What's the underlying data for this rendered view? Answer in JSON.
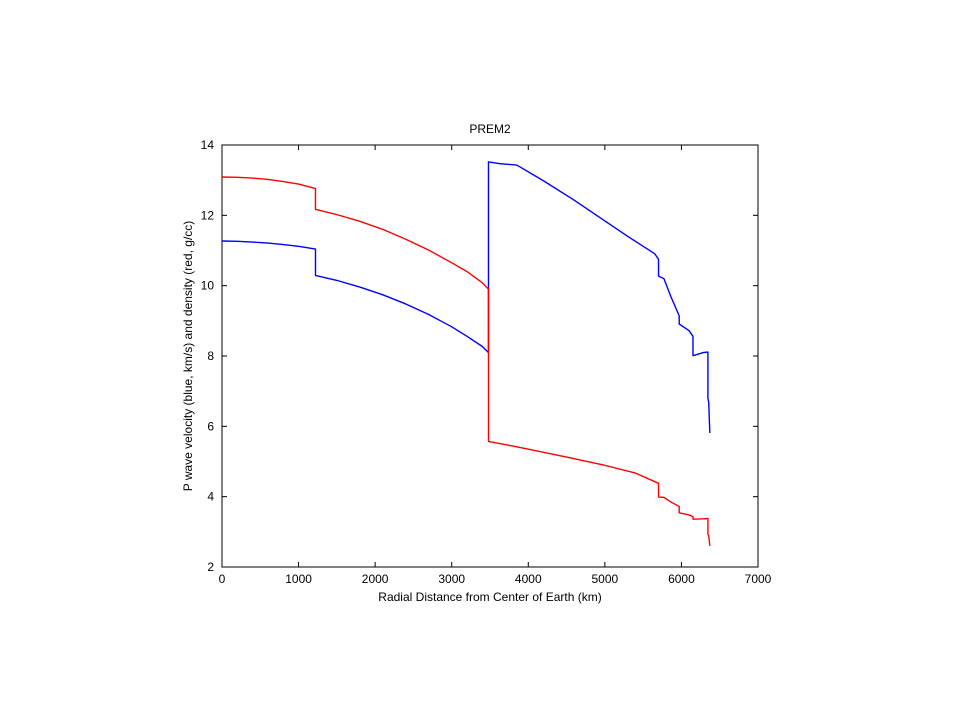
{
  "chart_data": {
    "type": "line",
    "title": "PREM2",
    "xlabel": "Radial Distance from Center of Earth (km)",
    "ylabel": "P wave velocity (blue, km/s) and density (red, g/cc)",
    "xlim": [
      0,
      7000
    ],
    "ylim": [
      2,
      14
    ],
    "xticks": [
      0,
      1000,
      2000,
      3000,
      4000,
      5000,
      6000,
      7000
    ],
    "yticks": [
      2,
      4,
      6,
      8,
      10,
      12,
      14
    ],
    "grid": false,
    "series": [
      {
        "color": "#0000ff",
        "x": [
          0,
          200,
          400,
          600,
          800,
          1000,
          1221,
          1221,
          1500,
          1800,
          2100,
          2400,
          2700,
          3000,
          3200,
          3400,
          3480,
          3480,
          3630,
          3850,
          4200,
          4600,
          5000,
          5300,
          5500,
          5650,
          5701,
          5701,
          5771,
          5860,
          5971,
          5971,
          6100,
          6151,
          6151,
          6291,
          6346,
          6346,
          6356,
          6371
        ],
        "y": [
          11.27,
          11.26,
          11.24,
          11.21,
          11.17,
          11.12,
          11.04,
          10.29,
          10.15,
          9.96,
          9.74,
          9.48,
          9.18,
          8.83,
          8.56,
          8.27,
          8.1,
          13.52,
          13.47,
          13.43,
          12.98,
          12.43,
          11.84,
          11.4,
          11.12,
          10.91,
          10.75,
          10.27,
          10.2,
          9.7,
          9.14,
          8.91,
          8.72,
          8.56,
          8.01,
          8.1,
          8.11,
          6.8,
          6.68,
          5.81
        ]
      },
      {
        "color": "#ff0000",
        "x": [
          0,
          200,
          400,
          600,
          800,
          1000,
          1221,
          1221,
          1500,
          1800,
          2100,
          2400,
          2700,
          3000,
          3200,
          3400,
          3480,
          3480,
          3800,
          4200,
          4600,
          5000,
          5400,
          5701,
          5701,
          5771,
          5860,
          5971,
          5971,
          6100,
          6151,
          6151,
          6291,
          6346,
          6346,
          6356,
          6371
        ],
        "y": [
          13.09,
          13.08,
          13.06,
          13.02,
          12.96,
          12.89,
          12.76,
          12.17,
          12.02,
          11.83,
          11.6,
          11.32,
          11.01,
          10.65,
          10.4,
          10.08,
          9.9,
          5.57,
          5.44,
          5.26,
          5.08,
          4.89,
          4.67,
          4.38,
          3.99,
          3.98,
          3.85,
          3.72,
          3.54,
          3.48,
          3.43,
          3.36,
          3.37,
          3.38,
          2.92,
          2.9,
          2.6
        ]
      }
    ]
  }
}
